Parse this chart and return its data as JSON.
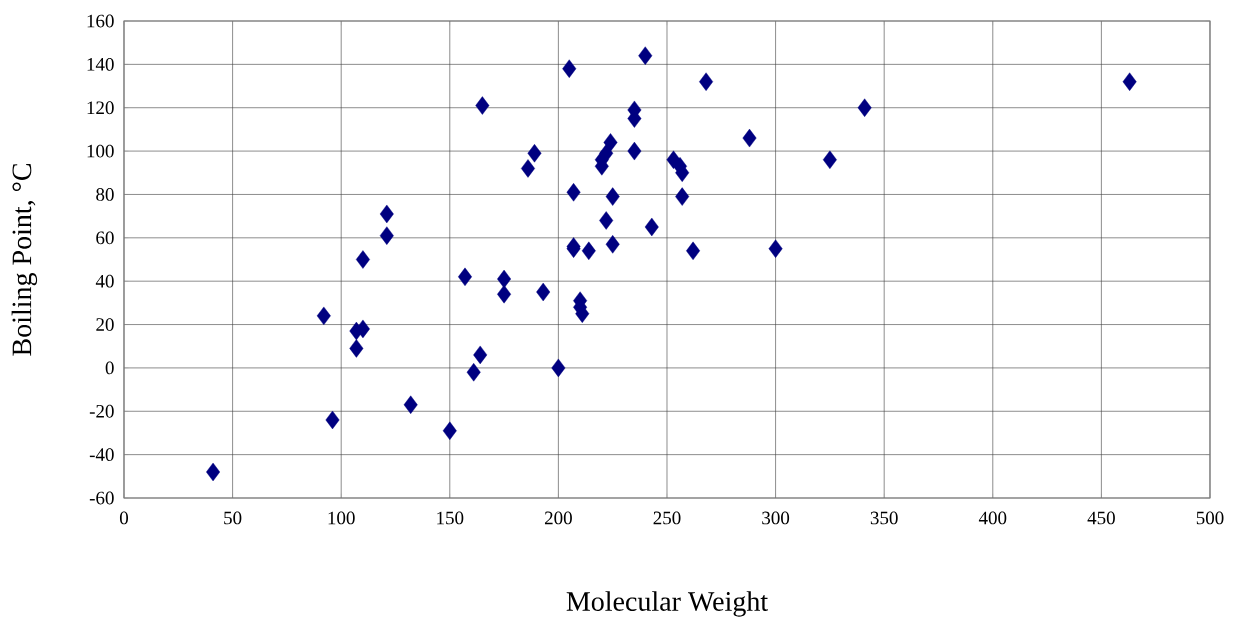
{
  "chart_data": {
    "type": "scatter",
    "xlabel": "Molecular Weight",
    "ylabel": "Boiling Point, °C",
    "xlim": [
      0,
      500
    ],
    "ylim": [
      -60,
      160
    ],
    "xticks": [
      0,
      50,
      100,
      150,
      200,
      250,
      300,
      350,
      400,
      450,
      500
    ],
    "yticks": [
      -60,
      -40,
      -20,
      0,
      20,
      40,
      60,
      80,
      100,
      120,
      140,
      160
    ],
    "grid": true,
    "marker": "diamond",
    "series": [
      {
        "color": "#000080",
        "x": [
          41,
          92,
          96,
          107,
          107,
          110,
          110,
          121,
          121,
          132,
          150,
          157,
          161,
          164,
          165,
          175,
          175,
          186,
          189,
          193,
          200,
          205,
          207,
          207,
          207,
          210,
          210,
          211,
          214,
          220,
          220,
          222,
          222,
          224,
          225,
          225,
          235,
          235,
          235,
          240,
          243,
          253,
          256,
          257,
          257,
          262,
          268,
          288,
          300,
          325,
          341,
          463
        ],
        "values": [
          -48,
          24,
          -24,
          17,
          9,
          18,
          50,
          71,
          61,
          -17,
          -29,
          42,
          -2,
          6,
          121,
          41,
          34,
          92,
          99,
          35,
          0,
          138,
          81,
          55,
          56,
          31,
          28,
          25,
          54,
          96,
          93,
          99,
          68,
          104,
          79,
          57,
          119,
          115,
          100,
          144,
          65,
          96,
          93,
          90,
          79,
          54,
          132,
          106,
          55,
          96,
          120,
          132
        ]
      }
    ]
  }
}
